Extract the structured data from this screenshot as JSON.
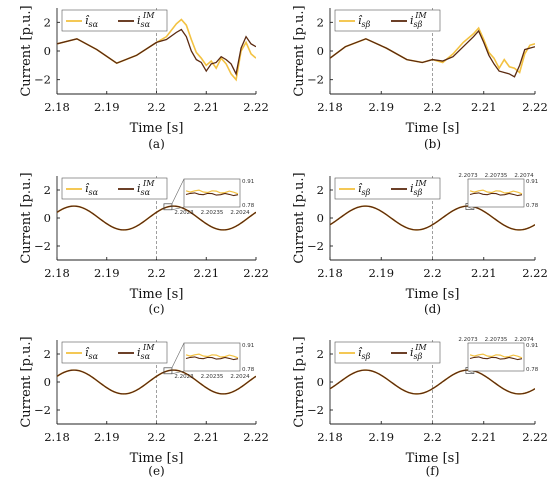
{
  "colors": {
    "estimate": "#f3c242",
    "reference": "#5b2a10"
  },
  "chart_data": [
    {
      "type": "line",
      "caption": "(a)",
      "xlabel": "Time [s]",
      "ylabel": "Current [p.u.]",
      "xlim": [
        2.18,
        2.22
      ],
      "ylim": [
        -3,
        3
      ],
      "xticks": [
        "2.18",
        "2.19",
        "2.2",
        "2.21",
        "2.22"
      ],
      "yticks": [
        "2",
        "0",
        "-2"
      ],
      "vline_x": 2.2,
      "legend": [
        "î_sα",
        "i_sα^IM"
      ],
      "series": [
        {
          "name": "î_sα",
          "color": "#f3c242",
          "x": [
            2.18,
            2.184,
            2.188,
            2.192,
            2.196,
            2.2,
            2.202,
            2.204,
            2.205,
            2.206,
            2.207,
            2.208,
            2.209,
            2.21,
            2.211,
            2.212,
            2.213,
            2.214,
            2.215,
            2.216,
            2.217,
            2.218,
            2.219,
            2.22
          ],
          "y": [
            0.5,
            0.85,
            0.1,
            -0.85,
            -0.3,
            0.6,
            1.0,
            1.9,
            2.2,
            1.8,
            0.8,
            -0.1,
            -0.5,
            -1.0,
            -0.7,
            -1.2,
            -0.5,
            -0.9,
            -1.6,
            -2.0,
            0.0,
            0.6,
            -0.2,
            -0.5
          ]
        },
        {
          "name": "i_sα^IM",
          "color": "#5b2a10",
          "x": [
            2.18,
            2.184,
            2.188,
            2.192,
            2.196,
            2.2,
            2.202,
            2.204,
            2.205,
            2.206,
            2.207,
            2.208,
            2.209,
            2.21,
            2.211,
            2.212,
            2.213,
            2.214,
            2.215,
            2.216,
            2.217,
            2.218,
            2.219,
            2.22
          ],
          "y": [
            0.5,
            0.85,
            0.1,
            -0.85,
            -0.3,
            0.6,
            0.8,
            1.3,
            1.5,
            1.0,
            0.0,
            -0.6,
            -0.8,
            -1.4,
            -0.9,
            -0.8,
            -0.4,
            -0.6,
            -0.9,
            -1.6,
            0.2,
            1.0,
            0.5,
            0.3
          ]
        }
      ]
    },
    {
      "type": "line",
      "caption": "(b)",
      "xlabel": "Time [s]",
      "ylabel": "Current [p.u.]",
      "xlim": [
        2.18,
        2.22
      ],
      "ylim": [
        -3,
        3
      ],
      "xticks": [
        "2.18",
        "2.19",
        "2.2",
        "2.21",
        "2.22"
      ],
      "yticks": [
        "2",
        "0",
        "-2"
      ],
      "vline_x": 2.2,
      "legend": [
        "î_sβ",
        "i_sβ^IM"
      ],
      "series": [
        {
          "name": "î_sβ",
          "color": "#f3c242",
          "x": [
            2.18,
            2.183,
            2.187,
            2.191,
            2.195,
            2.198,
            2.2,
            2.202,
            2.204,
            2.206,
            2.208,
            2.209,
            2.21,
            2.211,
            2.212,
            2.213,
            2.214,
            2.215,
            2.216,
            2.217,
            2.218,
            2.219,
            2.22
          ],
          "y": [
            -0.5,
            0.3,
            0.85,
            0.2,
            -0.6,
            -0.8,
            -0.6,
            -0.8,
            -0.2,
            0.6,
            1.2,
            1.6,
            0.8,
            -0.1,
            -0.5,
            -1.2,
            -0.6,
            -1.1,
            -1.2,
            -1.5,
            -0.2,
            0.4,
            0.5
          ]
        },
        {
          "name": "i_sβ^IM",
          "color": "#5b2a10",
          "x": [
            2.18,
            2.183,
            2.187,
            2.191,
            2.195,
            2.198,
            2.2,
            2.202,
            2.204,
            2.206,
            2.208,
            2.209,
            2.21,
            2.211,
            2.212,
            2.213,
            2.214,
            2.215,
            2.216,
            2.217,
            2.218,
            2.219,
            2.22
          ],
          "y": [
            -0.5,
            0.3,
            0.85,
            0.2,
            -0.6,
            -0.8,
            -0.6,
            -0.7,
            -0.4,
            0.3,
            1.0,
            1.4,
            0.6,
            -0.3,
            -0.9,
            -1.4,
            -1.5,
            -1.6,
            -1.8,
            -1.0,
            0.1,
            0.2,
            0.3
          ]
        }
      ]
    },
    {
      "type": "line",
      "caption": "(c)",
      "xlabel": "Time [s]",
      "ylabel": "Current [p.u.]",
      "xlim": [
        2.18,
        2.22
      ],
      "ylim": [
        -3,
        3
      ],
      "xticks": [
        "2.18",
        "2.19",
        "2.2",
        "2.21",
        "2.22"
      ],
      "yticks": [
        "2",
        "0",
        "-2"
      ],
      "vline_x": 2.2,
      "legend": [
        "î_sα",
        "i_sα^IM"
      ],
      "wave": {
        "amplitude": 0.85,
        "frequency_hz": 50,
        "phase_zero_crossing_s": 2.18
      },
      "series": [
        {
          "name": "î_sα",
          "color": "#f3c242",
          "formula": "0.85*sin(2π·50·(t−2.18)+0.5)"
        },
        {
          "name": "i_sα^IM",
          "color": "#5b2a10",
          "formula": "0.85*sin(2π·50·(t−2.18)+0.5)"
        }
      ],
      "inset": {
        "x_ticks": [
          "2.2023",
          "2.20235",
          "2.2024"
        ],
        "y_ticks": [
          "0.91",
          "0.78"
        ]
      }
    },
    {
      "type": "line",
      "caption": "(d)",
      "xlabel": "Time [s]",
      "ylabel": "Current [p.u.]",
      "xlim": [
        2.18,
        2.22
      ],
      "ylim": [
        -3,
        3
      ],
      "xticks": [
        "2.18",
        "2.19",
        "2.2",
        "2.21",
        "2.22"
      ],
      "yticks": [
        "2",
        "0",
        "-2"
      ],
      "vline_x": 2.2,
      "legend": [
        "î_sβ",
        "i_sβ^IM"
      ],
      "series": [
        {
          "name": "î_sβ",
          "color": "#f3c242",
          "formula": "0.85*sin(2π·50·(t−2.18)−0.6)"
        },
        {
          "name": "i_sβ^IM",
          "color": "#5b2a10",
          "formula": "0.85*sin(2π·50·(t−2.18)−0.6)"
        }
      ],
      "inset": {
        "x_ticks": [
          "2.2073",
          "2.20735",
          "2.2074"
        ],
        "y_ticks": [
          "0.91",
          "0.78"
        ]
      }
    },
    {
      "type": "line",
      "caption": "(e)",
      "xlabel": "Time [s]",
      "ylabel": "Current [p.u.]",
      "xlim": [
        2.18,
        2.22
      ],
      "ylim": [
        -3,
        3
      ],
      "xticks": [
        "2.18",
        "2.19",
        "2.2",
        "2.21",
        "2.22"
      ],
      "yticks": [
        "2",
        "0",
        "-2"
      ],
      "vline_x": 2.2,
      "legend": [
        "î_sα",
        "i_sα^IM"
      ],
      "series": [
        {
          "name": "î_sα",
          "color": "#f3c242",
          "formula": "0.85*sin(2π·50·(t−2.18)+0.5)"
        },
        {
          "name": "i_sα^IM",
          "color": "#5b2a10",
          "formula": "0.85*sin(2π·50·(t−2.18)+0.5)"
        }
      ],
      "inset": {
        "x_ticks": [
          "2.2023",
          "2.20235",
          "2.2024"
        ],
        "y_ticks": [
          "0.91",
          "0.78"
        ]
      }
    },
    {
      "type": "line",
      "caption": "(f)",
      "xlabel": "Time [s]",
      "ylabel": "Current [p.u.]",
      "xlim": [
        2.18,
        2.22
      ],
      "ylim": [
        -3,
        3
      ],
      "xticks": [
        "2.18",
        "2.19",
        "2.2",
        "2.21",
        "2.22"
      ],
      "yticks": [
        "2",
        "0",
        "-2"
      ],
      "vline_x": 2.2,
      "legend": [
        "î_sβ",
        "i_sβ^IM"
      ],
      "series": [
        {
          "name": "î_sβ",
          "color": "#f3c242",
          "formula": "0.85*sin(2π·50·(t−2.18)−0.6)"
        },
        {
          "name": "i_sβ^IM",
          "color": "#5b2a10",
          "formula": "0.85*sin(2π·50·(t−2.18)−0.6)"
        }
      ],
      "inset": {
        "x_ticks": [
          "2.2073",
          "2.20735",
          "2.2074"
        ],
        "y_ticks": [
          "0.91",
          "0.78"
        ]
      }
    }
  ]
}
